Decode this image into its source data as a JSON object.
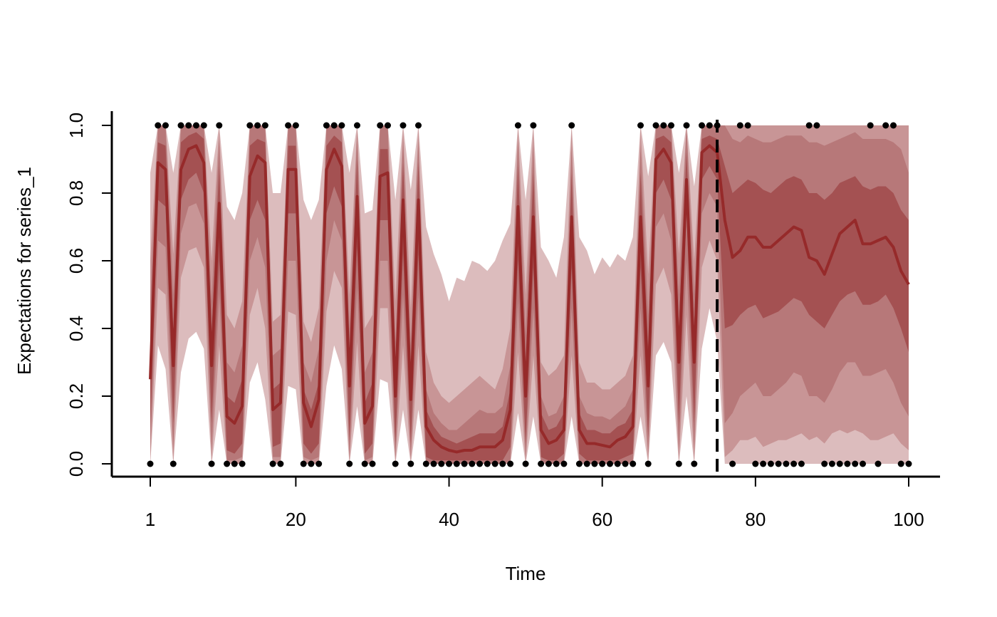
{
  "chart_data": {
    "type": "line",
    "title": "",
    "xlabel": "Time",
    "ylabel": "Expectations for series_1",
    "xlim": [
      1,
      100
    ],
    "ylim": [
      0,
      1
    ],
    "x_ticks": [
      1,
      20,
      40,
      60,
      80,
      100
    ],
    "y_ticks": [
      0.0,
      0.2,
      0.4,
      0.6,
      0.8,
      1.0
    ],
    "x_tick_labels": [
      "1",
      "20",
      "40",
      "60",
      "80",
      "100"
    ],
    "y_tick_labels": [
      "0.0",
      "0.2",
      "0.4",
      "0.6",
      "0.8",
      "1.0"
    ],
    "forecast_start": 75,
    "colors": {
      "median": "#962a2a",
      "band_outer": "#dcbcbd",
      "band_2": "#c89596",
      "band_3": "#b77879",
      "band_inner": "#a45152",
      "points": "#000000",
      "divider": "#000000"
    },
    "x": [
      1,
      2,
      3,
      4,
      5,
      6,
      7,
      8,
      9,
      10,
      11,
      12,
      13,
      14,
      15,
      16,
      17,
      18,
      19,
      20,
      21,
      22,
      23,
      24,
      25,
      26,
      27,
      28,
      29,
      30,
      31,
      32,
      33,
      34,
      35,
      36,
      37,
      38,
      39,
      40,
      41,
      42,
      43,
      44,
      45,
      46,
      47,
      48,
      49,
      50,
      51,
      52,
      53,
      54,
      55,
      56,
      57,
      58,
      59,
      60,
      61,
      62,
      63,
      64,
      65,
      66,
      67,
      68,
      69,
      70,
      71,
      72,
      73,
      74,
      75,
      76,
      77,
      78,
      79,
      80,
      81,
      82,
      83,
      84,
      85,
      86,
      87,
      88,
      89,
      90,
      91,
      92,
      93,
      94,
      95,
      96,
      97,
      98,
      99,
      100
    ],
    "observed": [
      0,
      1,
      1,
      0,
      1,
      1,
      1,
      1,
      0,
      1,
      0,
      0,
      0,
      1,
      1,
      1,
      0,
      0,
      1,
      1,
      0,
      0,
      0,
      1,
      1,
      1,
      0,
      1,
      0,
      0,
      1,
      1,
      0,
      1,
      0,
      1,
      0,
      0,
      0,
      0,
      0,
      0,
      0,
      0,
      0,
      0,
      0,
      0,
      1,
      0,
      1,
      0,
      0,
      0,
      0,
      1,
      0,
      0,
      0,
      0,
      0,
      0,
      0,
      0,
      1,
      0,
      1,
      1,
      1,
      0,
      1,
      0,
      1,
      1,
      1,
      null,
      0,
      1,
      1,
      0,
      0,
      0,
      0,
      0,
      0,
      0,
      1,
      1,
      0,
      0,
      0,
      0,
      0,
      0,
      1,
      0,
      1,
      1,
      0,
      0
    ],
    "median": [
      0.25,
      0.89,
      0.87,
      0.29,
      0.87,
      0.93,
      0.94,
      0.89,
      0.29,
      0.77,
      0.14,
      0.12,
      0.17,
      0.85,
      0.91,
      0.89,
      0.16,
      0.18,
      0.87,
      0.87,
      0.18,
      0.11,
      0.19,
      0.87,
      0.93,
      0.88,
      0.23,
      0.79,
      0.12,
      0.17,
      0.85,
      0.86,
      0.2,
      0.78,
      0.19,
      0.78,
      0.11,
      0.07,
      0.05,
      0.04,
      0.035,
      0.04,
      0.04,
      0.05,
      0.05,
      0.05,
      0.07,
      0.16,
      0.76,
      0.2,
      0.73,
      0.1,
      0.06,
      0.07,
      0.1,
      0.73,
      0.1,
      0.06,
      0.06,
      0.055,
      0.05,
      0.07,
      0.08,
      0.11,
      0.73,
      0.23,
      0.9,
      0.93,
      0.89,
      0.3,
      0.84,
      0.3,
      0.92,
      0.94,
      0.92,
      0.72,
      0.61,
      0.63,
      0.67,
      0.67,
      0.64,
      0.64,
      0.66,
      0.68,
      0.7,
      0.69,
      0.61,
      0.6,
      0.56,
      0.62,
      0.68,
      0.7,
      0.72,
      0.65,
      0.65,
      0.66,
      0.67,
      0.64,
      0.57,
      0.53
    ],
    "bands": {
      "outer_lower": [
        0,
        0.35,
        0.28,
        0,
        0.27,
        0.37,
        0.39,
        0.34,
        0,
        0.16,
        0,
        0,
        0,
        0.24,
        0.3,
        0.19,
        0,
        0,
        0.23,
        0.22,
        0,
        0,
        0,
        0.23,
        0.35,
        0.28,
        0,
        0.17,
        0,
        0,
        0.25,
        0.24,
        0,
        0.16,
        0,
        0.16,
        0,
        0,
        0,
        0,
        0,
        0,
        0,
        0,
        0,
        0,
        0,
        0,
        0.15,
        0,
        0.14,
        0,
        0,
        0,
        0,
        0.14,
        0,
        0,
        0,
        0,
        0,
        0,
        0,
        0,
        0.14,
        0,
        0.32,
        0.36,
        0.3,
        0,
        0.2,
        0,
        0.34,
        0.46,
        0.36,
        0,
        0,
        0,
        0,
        0,
        0,
        0,
        0,
        0,
        0,
        0,
        0,
        0,
        0,
        0,
        0,
        0,
        0,
        0,
        0,
        0,
        0,
        0,
        0,
        0
      ],
      "outer_upper": [
        0.86,
        1,
        1,
        0.86,
        1,
        1,
        1,
        1,
        0.86,
        1,
        0.76,
        0.72,
        0.8,
        1,
        1,
        1,
        0.8,
        0.8,
        1,
        1,
        0.78,
        0.72,
        0.78,
        1,
        1,
        1,
        0.86,
        1,
        0.74,
        0.75,
        1,
        1,
        0.78,
        1,
        0.81,
        1,
        0.7,
        0.62,
        0.56,
        0.48,
        0.55,
        0.54,
        0.6,
        0.59,
        0.57,
        0.6,
        0.66,
        0.71,
        1,
        0.78,
        1,
        0.64,
        0.6,
        0.55,
        0.67,
        1,
        0.67,
        0.63,
        0.56,
        0.61,
        0.58,
        0.62,
        0.6,
        0.67,
        1,
        0.85,
        1,
        1,
        1,
        0.86,
        1,
        0.82,
        1,
        1,
        1,
        1,
        1,
        1,
        1,
        1,
        1,
        1,
        1,
        1,
        1,
        1,
        1,
        1,
        1,
        1,
        1,
        1,
        1,
        1,
        1,
        1,
        1,
        1,
        1,
        1
      ],
      "b2_lower": [
        0,
        0.52,
        0.5,
        0,
        0.55,
        0.63,
        0.64,
        0.58,
        0,
        0.35,
        0,
        0,
        0,
        0.44,
        0.52,
        0.4,
        0,
        0,
        0.45,
        0.44,
        0,
        0,
        0,
        0.45,
        0.57,
        0.52,
        0,
        0.36,
        0,
        0,
        0.46,
        0.46,
        0,
        0.35,
        0,
        0.35,
        0,
        0,
        0,
        0,
        0,
        0,
        0,
        0,
        0,
        0,
        0,
        0,
        0.33,
        0,
        0.32,
        0,
        0,
        0,
        0,
        0.32,
        0,
        0,
        0,
        0,
        0,
        0,
        0,
        0,
        0.32,
        0,
        0.53,
        0.58,
        0.5,
        0,
        0.44,
        0,
        0.58,
        0.66,
        0.6,
        0.02,
        0.04,
        0.07,
        0.07,
        0.08,
        0.05,
        0.06,
        0.07,
        0.07,
        0.08,
        0.09,
        0.07,
        0.08,
        0.06,
        0.09,
        0.1,
        0.09,
        0.1,
        0.09,
        0.07,
        0.07,
        0.08,
        0.09,
        0.06,
        0.04
      ],
      "b2_upper": [
        0.6,
        1,
        1,
        0.62,
        1,
        1,
        1,
        1,
        0.6,
        1,
        0.44,
        0.4,
        0.48,
        1,
        1,
        1,
        0.42,
        0.44,
        1,
        1,
        0.42,
        0.36,
        0.46,
        1,
        1,
        1,
        0.5,
        1,
        0.4,
        0.44,
        1,
        1,
        0.48,
        1,
        0.46,
        1,
        0.33,
        0.24,
        0.2,
        0.18,
        0.2,
        0.22,
        0.24,
        0.26,
        0.24,
        0.22,
        0.28,
        0.4,
        1,
        0.5,
        1,
        0.3,
        0.26,
        0.28,
        0.32,
        1,
        0.3,
        0.24,
        0.24,
        0.22,
        0.22,
        0.24,
        0.26,
        0.32,
        1,
        0.56,
        1,
        1,
        1,
        0.62,
        1,
        0.6,
        1,
        1,
        1,
        1,
        1,
        1,
        1,
        1,
        1,
        1,
        1,
        1,
        1,
        1,
        1,
        1,
        1,
        1,
        1,
        1,
        1,
        1,
        1,
        1,
        1,
        1,
        1,
        1
      ],
      "b3_lower": [
        0.03,
        0.66,
        0.64,
        0.04,
        0.68,
        0.76,
        0.77,
        0.71,
        0.04,
        0.5,
        0.01,
        0.01,
        0.02,
        0.6,
        0.67,
        0.58,
        0.02,
        0.02,
        0.6,
        0.6,
        0.02,
        0.01,
        0.02,
        0.6,
        0.72,
        0.66,
        0.02,
        0.52,
        0.01,
        0.02,
        0.6,
        0.6,
        0.02,
        0.5,
        0.02,
        0.5,
        0.01,
        0,
        0,
        0,
        0,
        0,
        0,
        0,
        0,
        0,
        0,
        0.01,
        0.48,
        0.02,
        0.46,
        0.01,
        0,
        0,
        0.01,
        0.46,
        0.01,
        0,
        0,
        0,
        0,
        0,
        0,
        0.01,
        0.46,
        0.03,
        0.7,
        0.74,
        0.66,
        0.04,
        0.6,
        0.04,
        0.74,
        0.8,
        0.76,
        0.12,
        0.15,
        0.2,
        0.22,
        0.24,
        0.2,
        0.2,
        0.22,
        0.24,
        0.27,
        0.26,
        0.2,
        0.2,
        0.18,
        0.22,
        0.27,
        0.3,
        0.3,
        0.26,
        0.26,
        0.27,
        0.28,
        0.24,
        0.18,
        0.14
      ],
      "b3_upper": [
        0.48,
        1,
        1,
        0.5,
        1,
        1,
        1,
        1,
        0.48,
        0.96,
        0.3,
        0.27,
        0.35,
        1,
        1,
        1,
        0.32,
        0.34,
        1,
        1,
        0.3,
        0.24,
        0.34,
        1,
        1,
        1,
        0.4,
        0.98,
        0.27,
        0.33,
        1,
        1,
        0.36,
        0.96,
        0.35,
        0.96,
        0.22,
        0.15,
        0.12,
        0.1,
        0.1,
        0.12,
        0.14,
        0.16,
        0.15,
        0.15,
        0.17,
        0.29,
        0.96,
        0.38,
        0.94,
        0.2,
        0.14,
        0.15,
        0.2,
        0.94,
        0.2,
        0.15,
        0.14,
        0.14,
        0.13,
        0.15,
        0.17,
        0.22,
        0.94,
        0.44,
        1,
        1,
        1,
        0.5,
        1,
        0.5,
        1,
        1,
        1,
        1,
        0.96,
        0.95,
        0.97,
        0.96,
        0.95,
        0.95,
        0.96,
        0.97,
        0.97,
        0.97,
        0.95,
        0.95,
        0.94,
        0.95,
        0.96,
        0.97,
        0.98,
        0.96,
        0.96,
        0.96,
        0.96,
        0.95,
        0.93,
        0.86
      ],
      "inner_lower": [
        0.1,
        0.78,
        0.76,
        0.12,
        0.78,
        0.84,
        0.86,
        0.8,
        0.12,
        0.6,
        0.04,
        0.03,
        0.06,
        0.72,
        0.78,
        0.72,
        0.05,
        0.06,
        0.74,
        0.74,
        0.06,
        0.03,
        0.06,
        0.74,
        0.82,
        0.76,
        0.07,
        0.64,
        0.03,
        0.06,
        0.72,
        0.72,
        0.06,
        0.62,
        0.06,
        0.62,
        0.02,
        0.01,
        0.01,
        0.01,
        0.01,
        0.01,
        0.01,
        0.01,
        0.01,
        0.01,
        0.01,
        0.05,
        0.6,
        0.06,
        0.58,
        0.02,
        0.01,
        0.01,
        0.03,
        0.58,
        0.03,
        0.01,
        0.01,
        0.01,
        0.01,
        0.01,
        0.02,
        0.03,
        0.58,
        0.08,
        0.8,
        0.84,
        0.78,
        0.12,
        0.74,
        0.12,
        0.84,
        0.88,
        0.84,
        0.4,
        0.41,
        0.44,
        0.46,
        0.47,
        0.43,
        0.44,
        0.45,
        0.47,
        0.49,
        0.48,
        0.44,
        0.42,
        0.4,
        0.44,
        0.48,
        0.5,
        0.51,
        0.47,
        0.47,
        0.48,
        0.5,
        0.46,
        0.4,
        0.33
      ],
      "inner_upper": [
        0.36,
        0.95,
        0.94,
        0.38,
        0.95,
        0.97,
        0.98,
        0.96,
        0.38,
        0.88,
        0.2,
        0.18,
        0.25,
        0.94,
        0.96,
        0.95,
        0.22,
        0.24,
        0.94,
        0.94,
        0.22,
        0.16,
        0.24,
        0.94,
        0.97,
        0.95,
        0.3,
        0.9,
        0.18,
        0.24,
        0.93,
        0.93,
        0.26,
        0.89,
        0.26,
        0.89,
        0.16,
        0.11,
        0.08,
        0.07,
        0.06,
        0.07,
        0.08,
        0.09,
        0.09,
        0.09,
        0.11,
        0.22,
        0.88,
        0.28,
        0.86,
        0.15,
        0.1,
        0.11,
        0.15,
        0.86,
        0.15,
        0.1,
        0.1,
        0.09,
        0.09,
        0.11,
        0.12,
        0.16,
        0.86,
        0.34,
        0.96,
        0.97,
        0.95,
        0.4,
        0.92,
        0.4,
        0.96,
        0.97,
        0.96,
        0.88,
        0.8,
        0.82,
        0.84,
        0.83,
        0.81,
        0.8,
        0.82,
        0.84,
        0.85,
        0.84,
        0.8,
        0.8,
        0.78,
        0.8,
        0.83,
        0.84,
        0.85,
        0.82,
        0.81,
        0.82,
        0.82,
        0.8,
        0.75,
        0.72
      ]
    }
  }
}
